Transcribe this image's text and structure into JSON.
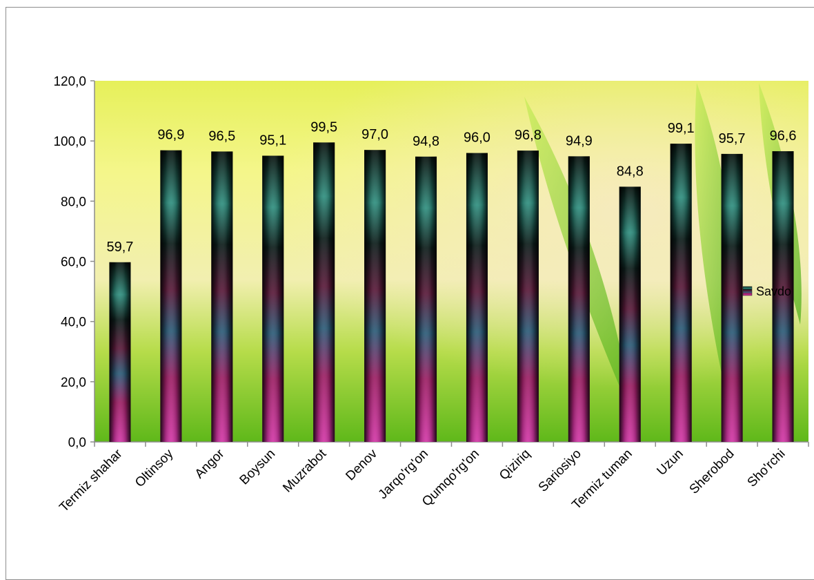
{
  "chart_data": {
    "type": "bar",
    "title": "",
    "xlabel": "",
    "ylabel": "",
    "categories": [
      "Termiz shahar",
      "Oltinsoy",
      "Angor",
      "Boysun",
      "Muzrabot",
      "Denov",
      "Jarqo'rg'on",
      "Qumqo'rg'on",
      "Qiziriq",
      "Sariosiyo",
      "Termiz tuman",
      "Uzun",
      "Sherobod",
      "Sho'rchi"
    ],
    "series": [
      {
        "name": "Savdo",
        "values": [
          59.7,
          96.9,
          96.5,
          95.1,
          99.5,
          97.0,
          94.8,
          96.0,
          96.8,
          94.9,
          84.8,
          99.1,
          95.7,
          96.6
        ]
      }
    ],
    "data_labels": [
      "59,7",
      "96,9",
      "96,5",
      "95,1",
      "99,5",
      "97,0",
      "94,8",
      "96,0",
      "96,8",
      "94,9",
      "84,8",
      "99,1",
      "95,7",
      "96,6"
    ],
    "ylim": [
      0,
      120
    ],
    "yticks": [
      0,
      20,
      40,
      60,
      80,
      100,
      120
    ],
    "ytick_labels": [
      "0,0",
      "20,0",
      "40,0",
      "60,0",
      "80,0",
      "100,0",
      "120,0"
    ],
    "grid": false,
    "legend": {
      "position": "right",
      "entries": [
        "Savdo"
      ]
    },
    "colors": {
      "background_top": "#eef57a",
      "background_bottom": "#6cc21e",
      "bar_dark": "#0a1410",
      "bar_teal": "#3fae9a",
      "bar_magenta": "#c0268f"
    }
  }
}
